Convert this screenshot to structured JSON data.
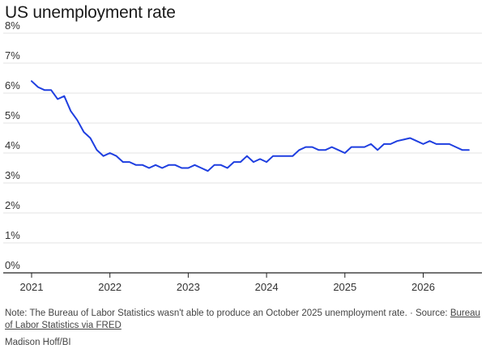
{
  "chart_data": {
    "type": "line",
    "title": "US unemployment rate",
    "xlabel": "",
    "ylabel": "",
    "xlim": [
      2021,
      2026.75
    ],
    "ylim": [
      0,
      8
    ],
    "x_ticks": [
      2021,
      2022,
      2023,
      2024,
      2025,
      2026
    ],
    "x_tick_labels": [
      "2021",
      "2022",
      "2023",
      "2024",
      "2025",
      "2026"
    ],
    "y_ticks": [
      0,
      1,
      2,
      3,
      4,
      5,
      6,
      7,
      8
    ],
    "y_tick_labels": [
      "0%",
      "1%",
      "2%",
      "3%",
      "4%",
      "5%",
      "6%",
      "7%",
      "8%"
    ],
    "grid": true,
    "line_color": "#1f3fe0",
    "series": [
      {
        "name": "",
        "points": [
          [
            2021.0,
            6.4
          ],
          [
            2021.083,
            6.2
          ],
          [
            2021.167,
            6.1
          ],
          [
            2021.25,
            6.1
          ],
          [
            2021.333,
            5.8
          ],
          [
            2021.417,
            5.9
          ],
          [
            2021.5,
            5.4
          ],
          [
            2021.583,
            5.1
          ],
          [
            2021.667,
            4.7
          ],
          [
            2021.75,
            4.5
          ],
          [
            2021.833,
            4.1
          ],
          [
            2021.917,
            3.9
          ],
          [
            2022.0,
            4.0
          ],
          [
            2022.083,
            3.9
          ],
          [
            2022.167,
            3.7
          ],
          [
            2022.25,
            3.7
          ],
          [
            2022.333,
            3.6
          ],
          [
            2022.417,
            3.6
          ],
          [
            2022.5,
            3.5
          ],
          [
            2022.583,
            3.6
          ],
          [
            2022.667,
            3.5
          ],
          [
            2022.75,
            3.6
          ],
          [
            2022.833,
            3.6
          ],
          [
            2022.917,
            3.5
          ],
          [
            2023.0,
            3.5
          ],
          [
            2023.083,
            3.6
          ],
          [
            2023.167,
            3.5
          ],
          [
            2023.25,
            3.4
          ],
          [
            2023.333,
            3.6
          ],
          [
            2023.417,
            3.6
          ],
          [
            2023.5,
            3.5
          ],
          [
            2023.583,
            3.7
          ],
          [
            2023.667,
            3.7
          ],
          [
            2023.75,
            3.9
          ],
          [
            2023.833,
            3.7
          ],
          [
            2023.917,
            3.8
          ],
          [
            2024.0,
            3.7
          ],
          [
            2024.083,
            3.9
          ],
          [
            2024.167,
            3.9
          ],
          [
            2024.25,
            3.9
          ],
          [
            2024.333,
            3.9
          ],
          [
            2024.417,
            4.1
          ],
          [
            2024.5,
            4.2
          ],
          [
            2024.583,
            4.2
          ],
          [
            2024.667,
            4.1
          ],
          [
            2024.75,
            4.1
          ],
          [
            2024.833,
            4.2
          ],
          [
            2024.917,
            4.1
          ],
          [
            2025.0,
            4.0
          ],
          [
            2025.083,
            4.2
          ],
          [
            2025.167,
            4.2
          ],
          [
            2025.25,
            4.2
          ],
          [
            2025.333,
            4.3
          ],
          [
            2025.417,
            4.1
          ],
          [
            2025.5,
            4.3
          ],
          [
            2025.583,
            4.3
          ],
          [
            2025.667,
            4.4
          ],
          [
            2025.75,
            4.45
          ],
          [
            2025.833,
            4.5
          ],
          [
            2025.917,
            4.4
          ],
          [
            2026.0,
            4.3
          ],
          [
            2026.083,
            4.4
          ],
          [
            2026.167,
            4.3
          ],
          [
            2026.25,
            4.3
          ],
          [
            2026.333,
            4.3
          ],
          [
            2026.417,
            4.2
          ],
          [
            2026.5,
            4.1
          ],
          [
            2026.583,
            4.1
          ]
        ]
      }
    ]
  },
  "footer": {
    "note": "Note: The Bureau of Labor Statistics wasn't able to produce an October 2025 unemployment rate. · Source:",
    "source_link": "Bureau of Labor Statistics via FRED",
    "credit": "Madison Hoff/BI"
  }
}
